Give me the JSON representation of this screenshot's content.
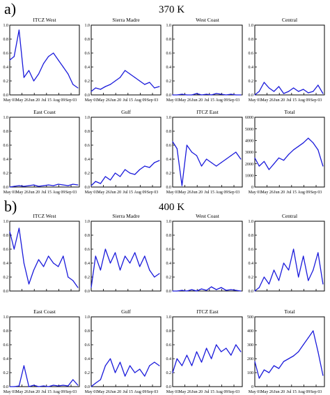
{
  "panels": [
    {
      "letter": "a)",
      "level": "370 K"
    },
    {
      "letter": "b)",
      "level": "400 K"
    }
  ],
  "line_color": "#1a1adb",
  "chart_data": [
    {
      "type": "line",
      "title": "ITCZ West",
      "ylim": [
        0,
        1.0
      ],
      "yticks": [
        "0.0",
        "0.2",
        "0.4",
        "0.6",
        "0.8",
        "1.0"
      ],
      "xticks": [
        "May 01",
        "May 26",
        "Jun 20",
        "Jul 15",
        "Aug 09",
        "Sep 03"
      ],
      "show_xlabels": true,
      "x": [
        "May 01",
        "May 10",
        "May 20",
        "May 30",
        "Jun 09",
        "Jun 19",
        "Jun 29",
        "Jul 09",
        "Jul 19",
        "Jul 29",
        "Aug 08",
        "Aug 18",
        "Aug 28",
        "Sep 07",
        "Sep 17"
      ],
      "y": [
        0.5,
        0.55,
        0.93,
        0.25,
        0.35,
        0.2,
        0.3,
        0.45,
        0.55,
        0.6,
        0.5,
        0.4,
        0.3,
        0.15,
        0.1
      ]
    },
    {
      "type": "line",
      "title": "Sierra Madre",
      "ylim": [
        0,
        1.0
      ],
      "yticks": [
        "0.0",
        "0.2",
        "0.4",
        "0.6",
        "0.8",
        "1.0"
      ],
      "xticks": [
        "May 01",
        "May 26",
        "Jun 20",
        "Jul 15",
        "Aug 09",
        "Sep 03"
      ],
      "show_xlabels": true,
      "x": [
        "May 01",
        "May 10",
        "May 20",
        "May 30",
        "Jun 09",
        "Jun 19",
        "Jun 29",
        "Jul 09",
        "Jul 19",
        "Jul 29",
        "Aug 08",
        "Aug 18",
        "Aug 28",
        "Sep 07",
        "Sep 17"
      ],
      "y": [
        0.05,
        0.1,
        0.08,
        0.12,
        0.15,
        0.2,
        0.25,
        0.35,
        0.3,
        0.25,
        0.2,
        0.15,
        0.18,
        0.1,
        0.12
      ]
    },
    {
      "type": "line",
      "title": "West Coast",
      "ylim": [
        0,
        1.0
      ],
      "yticks": [
        "0.0",
        "0.2",
        "0.4",
        "0.6",
        "0.8",
        "1.0"
      ],
      "xticks": [
        "May 01",
        "May 26",
        "Jun 20",
        "Jul 15",
        "Aug 09",
        "Sep 03"
      ],
      "show_xlabels": true,
      "x": [
        "May 01",
        "May 10",
        "May 20",
        "May 30",
        "Jun 09",
        "Jun 19",
        "Jun 29",
        "Jul 09",
        "Jul 19",
        "Jul 29",
        "Aug 08",
        "Aug 18",
        "Aug 28",
        "Sep 07",
        "Sep 17"
      ],
      "y": [
        0,
        0,
        0.01,
        0,
        0,
        0.02,
        0,
        0.01,
        0,
        0.02,
        0.01,
        0,
        0.01,
        0,
        0
      ]
    },
    {
      "type": "line",
      "title": "Central",
      "ylim": [
        0,
        1.0
      ],
      "yticks": [
        "0.0",
        "0.2",
        "0.4",
        "0.6",
        "0.8",
        "1.0"
      ],
      "xticks": [
        "May 01",
        "May 26",
        "Jun 20",
        "Jul 15",
        "Aug 09",
        "Sep 03"
      ],
      "show_xlabels": true,
      "x": [
        "May 01",
        "May 10",
        "May 20",
        "May 30",
        "Jun 09",
        "Jun 19",
        "Jun 29",
        "Jul 09",
        "Jul 19",
        "Jul 29",
        "Aug 08",
        "Aug 18",
        "Aug 28",
        "Sep 07",
        "Sep 17"
      ],
      "y": [
        0,
        0.05,
        0.18,
        0.1,
        0.05,
        0.12,
        0.02,
        0.05,
        0.1,
        0.05,
        0.08,
        0.03,
        0.05,
        0.14,
        0.02
      ]
    },
    {
      "type": "line",
      "title": "East Coast",
      "ylim": [
        0,
        1.0
      ],
      "yticks": [
        "0.0",
        "0.2",
        "0.4",
        "0.6",
        "0.8",
        "1.0"
      ],
      "xticks": [
        "May 01",
        "May 26",
        "Jun 20",
        "Jul 15",
        "Aug 09",
        "Sep 03"
      ],
      "show_xlabels": true,
      "x": [
        "May 01",
        "May 10",
        "May 20",
        "May 30",
        "Jun 09",
        "Jun 19",
        "Jun 29",
        "Jul 09",
        "Jul 19",
        "Jul 29",
        "Aug 08",
        "Aug 18",
        "Aug 28",
        "Sep 07",
        "Sep 17"
      ],
      "y": [
        0,
        0.01,
        0.02,
        0.01,
        0.02,
        0.03,
        0.01,
        0.02,
        0.03,
        0.02,
        0.04,
        0.03,
        0.02,
        0.04,
        0.03
      ]
    },
    {
      "type": "line",
      "title": "Gulf",
      "ylim": [
        0,
        1.0
      ],
      "yticks": [
        "0.0",
        "0.2",
        "0.4",
        "0.6",
        "0.8",
        "1.0"
      ],
      "xticks": [
        "May 01",
        "May 26",
        "Jun 20",
        "Jul 15",
        "Aug 09",
        "Sep 03"
      ],
      "show_xlabels": true,
      "x": [
        "May 01",
        "May 10",
        "May 20",
        "May 30",
        "Jun 09",
        "Jun 19",
        "Jun 29",
        "Jul 09",
        "Jul 19",
        "Jul 29",
        "Aug 08",
        "Aug 18",
        "Aug 28",
        "Sep 07",
        "Sep 17"
      ],
      "y": [
        0.02,
        0.08,
        0.05,
        0.15,
        0.1,
        0.2,
        0.15,
        0.25,
        0.2,
        0.18,
        0.25,
        0.3,
        0.28,
        0.35,
        0.38
      ]
    },
    {
      "type": "line",
      "title": "ITCZ East",
      "ylim": [
        0,
        1.0
      ],
      "yticks": [
        "0.0",
        "0.2",
        "0.4",
        "0.6",
        "0.8",
        "1.0"
      ],
      "xticks": [
        "May 01",
        "May 26",
        "Jun 20",
        "Jul 15",
        "Aug 09",
        "Sep 03"
      ],
      "show_xlabels": true,
      "x": [
        "May 01",
        "May 10",
        "May 20",
        "May 30",
        "Jun 09",
        "Jun 19",
        "Jun 29",
        "Jul 09",
        "Jul 19",
        "Jul 29",
        "Aug 08",
        "Aug 18",
        "Aug 28",
        "Sep 07",
        "Sep 17"
      ],
      "y": [
        0.65,
        0.55,
        0.02,
        0.6,
        0.5,
        0.45,
        0.3,
        0.4,
        0.35,
        0.3,
        0.35,
        0.4,
        0.45,
        0.5,
        0.4
      ]
    },
    {
      "type": "line",
      "title": "Total",
      "ylim": [
        0,
        6000
      ],
      "yticks": [
        "0",
        "1000",
        "2000",
        "3000",
        "4000",
        "5000",
        "6000"
      ],
      "xticks": [
        "May 01",
        "May 26",
        "Jun 20",
        "Jul 15",
        "Aug 09",
        "Sep 03"
      ],
      "show_xlabels": true,
      "x": [
        "May 01",
        "May 10",
        "May 20",
        "May 30",
        "Jun 09",
        "Jun 19",
        "Jun 29",
        "Jul 09",
        "Jul 19",
        "Jul 29",
        "Aug 08",
        "Aug 18",
        "Aug 28",
        "Sep 07",
        "Sep 17"
      ],
      "y": [
        2500,
        1800,
        2200,
        1500,
        2000,
        2500,
        2300,
        2800,
        3200,
        3500,
        3800,
        4200,
        3800,
        3200,
        1800
      ]
    },
    {
      "type": "line",
      "title": "ITCZ West",
      "ylim": [
        0,
        1.0
      ],
      "yticks": [
        "0.0",
        "0.2",
        "0.4",
        "0.6",
        "0.8",
        "1.0"
      ],
      "xticks": [
        "May 01",
        "May 26",
        "Jun 20",
        "Jul 15",
        "Aug 09",
        "Sep 03"
      ],
      "show_xlabels": false,
      "x": [
        "May 01",
        "May 10",
        "May 20",
        "May 30",
        "Jun 09",
        "Jun 19",
        "Jun 29",
        "Jul 09",
        "Jul 19",
        "Jul 29",
        "Aug 08",
        "Aug 18",
        "Aug 28",
        "Sep 07",
        "Sep 17"
      ],
      "y": [
        0.85,
        0.6,
        0.9,
        0.4,
        0.1,
        0.3,
        0.45,
        0.35,
        0.5,
        0.4,
        0.35,
        0.5,
        0.2,
        0.15,
        0.05
      ]
    },
    {
      "type": "line",
      "title": "Sierra Madre",
      "ylim": [
        0,
        1.0
      ],
      "yticks": [
        "0.0",
        "0.2",
        "0.4",
        "0.6",
        "0.8",
        "1.0"
      ],
      "xticks": [
        "May 01",
        "May 26",
        "Jun 20",
        "Jul 15",
        "Aug 09",
        "Sep 03"
      ],
      "show_xlabels": false,
      "x": [
        "May 01",
        "May 10",
        "May 20",
        "May 30",
        "Jun 09",
        "Jun 19",
        "Jun 29",
        "Jul 09",
        "Jul 19",
        "Jul 29",
        "Aug 08",
        "Aug 18",
        "Aug 28",
        "Sep 07",
        "Sep 17"
      ],
      "y": [
        0.05,
        0.5,
        0.3,
        0.6,
        0.4,
        0.55,
        0.3,
        0.5,
        0.4,
        0.55,
        0.35,
        0.5,
        0.3,
        0.2,
        0.25
      ]
    },
    {
      "type": "line",
      "title": "West Coast",
      "ylim": [
        0,
        1.0
      ],
      "yticks": [
        "0.0",
        "0.2",
        "0.4",
        "0.6",
        "0.8",
        "1.0"
      ],
      "xticks": [
        "May 01",
        "May 26",
        "Jun 20",
        "Jul 15",
        "Aug 09",
        "Sep 03"
      ],
      "show_xlabels": false,
      "x": [
        "May 01",
        "May 10",
        "May 20",
        "May 30",
        "Jun 09",
        "Jun 19",
        "Jun 29",
        "Jul 09",
        "Jul 19",
        "Jul 29",
        "Aug 08",
        "Aug 18",
        "Aug 28",
        "Sep 07",
        "Sep 17"
      ],
      "y": [
        0,
        0,
        0.01,
        0,
        0.02,
        0,
        0.03,
        0.01,
        0.06,
        0.02,
        0.05,
        0.01,
        0.02,
        0.01,
        0
      ]
    },
    {
      "type": "line",
      "title": "Central",
      "ylim": [
        0,
        1.0
      ],
      "yticks": [
        "0.0",
        "0.2",
        "0.4",
        "0.6",
        "0.8",
        "1.0"
      ],
      "xticks": [
        "May 01",
        "May 26",
        "Jun 20",
        "Jul 15",
        "Aug 09",
        "Sep 03"
      ],
      "show_xlabels": false,
      "x": [
        "May 01",
        "May 10",
        "May 20",
        "May 30",
        "Jun 09",
        "Jun 19",
        "Jun 29",
        "Jul 09",
        "Jul 19",
        "Jul 29",
        "Aug 08",
        "Aug 18",
        "Aug 28",
        "Sep 07",
        "Sep 17"
      ],
      "y": [
        0,
        0.05,
        0.2,
        0.1,
        0.3,
        0.15,
        0.4,
        0.3,
        0.6,
        0.2,
        0.5,
        0.15,
        0.3,
        0.55,
        0.1
      ]
    },
    {
      "type": "line",
      "title": "East Coast",
      "ylim": [
        0,
        1.0
      ],
      "yticks": [
        "0.0",
        "0.2",
        "0.4",
        "0.6",
        "0.8",
        "1.0"
      ],
      "xticks": [
        "May 01",
        "May 26",
        "Jun 20",
        "Jul 15",
        "Aug 09",
        "Sep 03"
      ],
      "show_xlabels": true,
      "x": [
        "May 01",
        "May 10",
        "May 20",
        "May 30",
        "Jun 09",
        "Jun 19",
        "Jun 29",
        "Jul 09",
        "Jul 19",
        "Jul 29",
        "Aug 08",
        "Aug 18",
        "Aug 28",
        "Sep 07",
        "Sep 17"
      ],
      "y": [
        0,
        0,
        0.01,
        0.3,
        0,
        0.02,
        0,
        0.01,
        0,
        0.02,
        0.01,
        0.02,
        0.01,
        0.1,
        0.02
      ]
    },
    {
      "type": "line",
      "title": "Gulf",
      "ylim": [
        0,
        1.0
      ],
      "yticks": [
        "0.0",
        "0.2",
        "0.4",
        "0.6",
        "0.8",
        "1.0"
      ],
      "xticks": [
        "May 01",
        "May 26",
        "Jun 20",
        "Jul 15",
        "Aug 09",
        "Sep 03"
      ],
      "show_xlabels": true,
      "x": [
        "May 01",
        "May 10",
        "May 20",
        "May 30",
        "Jun 09",
        "Jun 19",
        "Jun 29",
        "Jul 09",
        "Jul 19",
        "Jul 29",
        "Aug 08",
        "Aug 18",
        "Aug 28",
        "Sep 07",
        "Sep 17"
      ],
      "y": [
        0,
        0.05,
        0.1,
        0.3,
        0.4,
        0.2,
        0.35,
        0.15,
        0.3,
        0.2,
        0.25,
        0.15,
        0.3,
        0.35,
        0.3
      ]
    },
    {
      "type": "line",
      "title": "ITCZ East",
      "ylim": [
        0,
        1.0
      ],
      "yticks": [
        "0.0",
        "0.2",
        "0.4",
        "0.6",
        "0.8",
        "1.0"
      ],
      "xticks": [
        "May 01",
        "May 26",
        "Jun 20",
        "Jul 15",
        "Aug 09",
        "Sep 03"
      ],
      "show_xlabels": true,
      "x": [
        "May 01",
        "May 10",
        "May 20",
        "May 30",
        "Jun 09",
        "Jun 19",
        "Jun 29",
        "Jul 09",
        "Jul 19",
        "Jul 29",
        "Aug 08",
        "Aug 18",
        "Aug 28",
        "Sep 07",
        "Sep 17"
      ],
      "y": [
        0.2,
        0.4,
        0.3,
        0.45,
        0.3,
        0.5,
        0.35,
        0.55,
        0.4,
        0.6,
        0.5,
        0.55,
        0.45,
        0.6,
        0.5
      ]
    },
    {
      "type": "line",
      "title": "Total",
      "ylim": [
        0,
        500
      ],
      "yticks": [
        "0",
        "100",
        "200",
        "300",
        "400",
        "500"
      ],
      "xticks": [
        "May 01",
        "May 26",
        "Jun 20",
        "Jul 15",
        "Aug 09",
        "Sep 03"
      ],
      "show_xlabels": true,
      "x": [
        "May 01",
        "May 10",
        "May 20",
        "May 30",
        "Jun 09",
        "Jun 19",
        "Jun 29",
        "Jul 09",
        "Jul 19",
        "Jul 29",
        "Aug 08",
        "Aug 18",
        "Aug 28",
        "Sep 07",
        "Sep 17"
      ],
      "y": [
        180,
        60,
        120,
        100,
        150,
        130,
        180,
        200,
        220,
        250,
        300,
        350,
        400,
        250,
        80
      ]
    }
  ]
}
